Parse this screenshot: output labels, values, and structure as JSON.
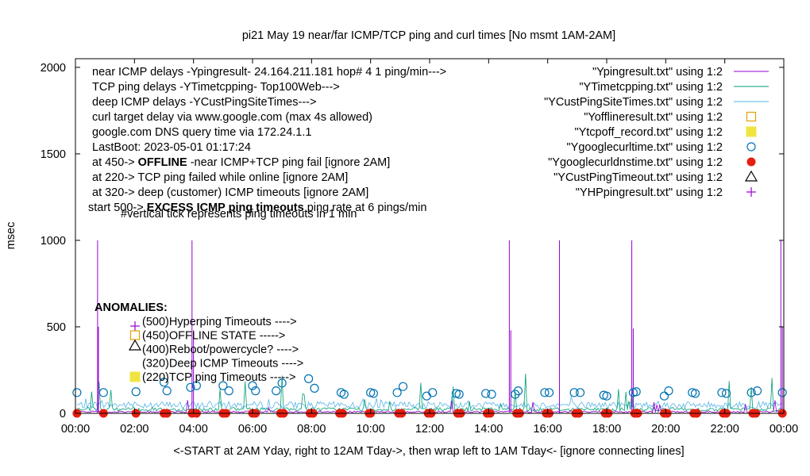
{
  "chart_data": {
    "type": "line",
    "title": "pi21 May 19  near/far ICMP/TCP ping and curl times [No msmt 1AM-2AM]",
    "xlabel": "<-START at 2AM Yday, right to 12AM Tday->, then wrap left to 1AM Tday<- [ignore connecting lines]",
    "ylabel": "msec",
    "ylim": [
      0,
      2050
    ],
    "xlim": [
      0,
      24
    ],
    "grid": false,
    "y_ticks": [
      0,
      500,
      1000,
      1500,
      2000
    ],
    "x_ticks": [
      "00:00",
      "02:00",
      "04:00",
      "06:00",
      "08:00",
      "10:00",
      "12:00",
      "14:00",
      "16:00",
      "18:00",
      "20:00",
      "22:00",
      "00:00"
    ],
    "legend_position": "top-right",
    "legend": [
      {
        "label": "\"Ypingresult.txt\" using 1:2",
        "style": "line",
        "color": "#9400d3"
      },
      {
        "label": "\"YTimetcpping.txt\" using 1:2",
        "style": "line",
        "color": "#009e73"
      },
      {
        "label": "\"YCustPingSiteTimes.txt\" using 1:2",
        "style": "line",
        "color": "#56b4e9"
      },
      {
        "label": "\"Yofflineresult.txt\" using 1:2",
        "style": "open-square",
        "color": "#e69f00"
      },
      {
        "label": "\"Ytcpoff_record.txt\" using 1:2",
        "style": "filled-square",
        "color": "#f0e442"
      },
      {
        "label": "\"Ygooglecurltime.txt\" using 1:2",
        "style": "open-circle",
        "color": "#0072b2"
      },
      {
        "label": "\"Ygooglecurldnstime.txt\" using 1:2",
        "style": "filled-circle",
        "color": "#e51e10"
      },
      {
        "label": "\"YCustPingTimeout.txt\" using 1:2",
        "style": "open-triangle",
        "color": "#000000"
      },
      {
        "label": "\"YHPpingresult.txt\" using 1:2",
        "style": "plus",
        "color": "#9400d3"
      }
    ],
    "info_lines": [
      "near ICMP delays -Ypingresult- 24.164.211.181 hop# 4 1 ping/min--->",
      "TCP ping delays -YTimetcpping- Top100Web--->",
      "deep ICMP delays -YCustPingSiteTimes--->",
      "curl target delay via www.google.com (max 4s allowed)",
      "google.com DNS query time via 172.24.1.1",
      "LastBoot: 2023-05-01 01:17:24"
    ],
    "info_offline": {
      "pre": "at 450-> ",
      "bold": "OFFLINE",
      "post": " -near ICMP+TCP ping fail [ignore 2AM]"
    },
    "info_tcp": "at 220-> TCP ping failed while online [ignore 2AM]",
    "info_deep": "at 320-> deep (customer) ICMP timeouts [ignore 2AM]",
    "info_excess": {
      "pre": "start 500-> ",
      "bold": "EXCESS ICMP ping timeouts",
      "post": "  ping rate at 6 pings/min"
    },
    "info_vertical": "#vertical tick represents ping timeouts in 1 min",
    "anomalies_title": "ANOMALIES:",
    "anomalies": [
      {
        "label": "(500)Hyperping Timeouts ---->",
        "marker": "plus",
        "color": "#9400d3"
      },
      {
        "label": "(450)OFFLINE STATE ----->",
        "marker": "open-square",
        "color": "#e69f00"
      },
      {
        "label": "(400)Reboot/powercycle? ---->",
        "marker": "open-triangle",
        "color": "#000000"
      },
      {
        "label": "(320)Deep ICMP Timeouts ---->",
        "marker": "none",
        "color": "#000000"
      },
      {
        "label": "(220)TCP ping Timeouts ----->",
        "marker": "filled-square",
        "color": "#f0e442"
      }
    ],
    "series": [
      {
        "name": "Ypingresult.txt",
        "type": "line",
        "color": "#9400d3",
        "spikes": [
          [
            0.75,
            1000
          ],
          [
            0.78,
            500
          ],
          [
            3.95,
            1000
          ],
          [
            4.0,
            480
          ],
          [
            14.7,
            1000
          ],
          [
            14.75,
            480
          ],
          [
            16.4,
            1000
          ],
          [
            18.85,
            1000
          ],
          [
            18.9,
            490
          ],
          [
            23.9,
            1000
          ],
          [
            23.95,
            500
          ]
        ]
      },
      {
        "name": "Ygooglecurltime.txt",
        "type": "scatter",
        "color": "#0072b2",
        "points": [
          [
            0.05,
            120
          ],
          [
            0.95,
            120
          ],
          [
            2.05,
            125
          ],
          [
            3.0,
            180
          ],
          [
            3.1,
            130
          ],
          [
            3.9,
            150
          ],
          [
            4.1,
            160
          ],
          [
            5.0,
            160
          ],
          [
            5.2,
            130
          ],
          [
            6.0,
            160
          ],
          [
            6.1,
            130
          ],
          [
            6.8,
            130
          ],
          [
            7.0,
            175
          ],
          [
            7.9,
            200
          ],
          [
            8.1,
            145
          ],
          [
            9.0,
            120
          ],
          [
            9.1,
            110
          ],
          [
            10.0,
            120
          ],
          [
            10.1,
            115
          ],
          [
            10.9,
            120
          ],
          [
            11.1,
            155
          ],
          [
            11.9,
            100
          ],
          [
            12.1,
            120
          ],
          [
            12.9,
            115
          ],
          [
            13.0,
            110
          ],
          [
            13.9,
            115
          ],
          [
            14.1,
            110
          ],
          [
            14.9,
            110
          ],
          [
            15.0,
            130
          ],
          [
            15.9,
            120
          ],
          [
            16.05,
            120
          ],
          [
            16.9,
            120
          ],
          [
            17.1,
            120
          ],
          [
            17.9,
            105
          ],
          [
            18.0,
            100
          ],
          [
            18.9,
            120
          ],
          [
            19.0,
            125
          ],
          [
            19.95,
            100
          ],
          [
            20.1,
            130
          ],
          [
            20.9,
            120
          ],
          [
            21.0,
            115
          ],
          [
            21.9,
            120
          ],
          [
            22.05,
            115
          ],
          [
            22.9,
            120
          ],
          [
            23.1,
            130
          ],
          [
            23.95,
            120
          ]
        ]
      },
      {
        "name": "Ygooglecurldnstime.txt",
        "type": "scatter",
        "color": "#e51e10",
        "points": [
          [
            0.05,
            0
          ],
          [
            0.95,
            0
          ],
          [
            2.05,
            0
          ],
          [
            3.0,
            0
          ],
          [
            3.1,
            0
          ],
          [
            3.95,
            0
          ],
          [
            4.1,
            0
          ],
          [
            5.0,
            0
          ],
          [
            5.1,
            0
          ],
          [
            6.0,
            0
          ],
          [
            6.1,
            0
          ],
          [
            6.95,
            0
          ],
          [
            7.05,
            0
          ],
          [
            7.95,
            0
          ],
          [
            8.05,
            0
          ],
          [
            8.95,
            0
          ],
          [
            9.05,
            0
          ],
          [
            9.95,
            0
          ],
          [
            10.0,
            0
          ],
          [
            10.95,
            0
          ],
          [
            11.05,
            0
          ],
          [
            11.95,
            0
          ],
          [
            12.05,
            0
          ],
          [
            12.95,
            0
          ],
          [
            13.05,
            0
          ],
          [
            13.95,
            0
          ],
          [
            14.05,
            0
          ],
          [
            14.95,
            0
          ],
          [
            15.05,
            0
          ],
          [
            15.95,
            0
          ],
          [
            16.05,
            0
          ],
          [
            16.95,
            0
          ],
          [
            17.05,
            0
          ],
          [
            17.95,
            0
          ],
          [
            18.05,
            0
          ],
          [
            18.95,
            0
          ],
          [
            19.05,
            0
          ],
          [
            19.95,
            0
          ],
          [
            20.05,
            0
          ],
          [
            20.95,
            0
          ],
          [
            21.05,
            0
          ],
          [
            21.95,
            0
          ],
          [
            22.05,
            0
          ],
          [
            22.95,
            0
          ],
          [
            23.05,
            0
          ],
          [
            23.95,
            0
          ]
        ]
      }
    ]
  }
}
